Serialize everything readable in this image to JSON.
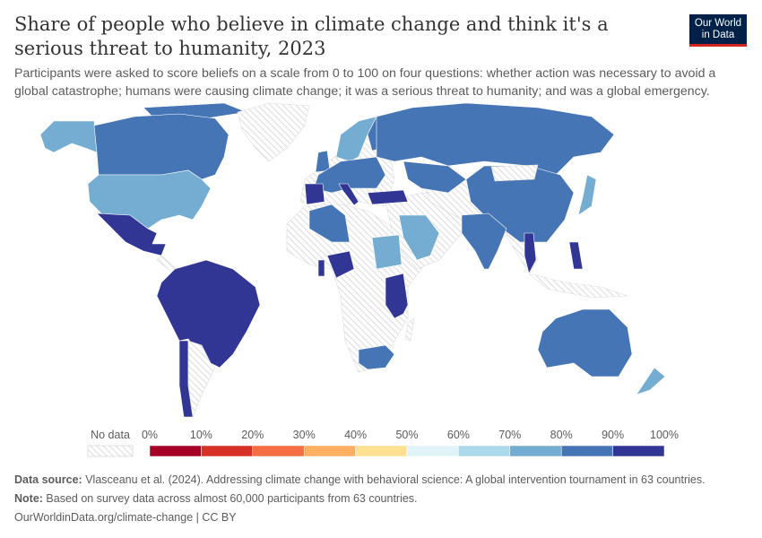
{
  "header": {
    "title": "Share of people who believe in climate change and think it's a serious threat to humanity, 2023",
    "subtitle": "Participants were asked to score beliefs on a scale from 0 to 100 on four questions: whether action was necessary to avoid a global catastrophe; humans were causing climate change; it was a serious threat to humanity; and was a global emergency.",
    "logo": "Our World in Data"
  },
  "legend": {
    "no_data_label": "No data",
    "ticks": [
      "0%",
      "10%",
      "20%",
      "30%",
      "40%",
      "50%",
      "60%",
      "70%",
      "80%",
      "90%",
      "100%"
    ],
    "colors": [
      "#a50026",
      "#d73027",
      "#f46d43",
      "#fdae61",
      "#fee090",
      "#e0f3f8",
      "#abd9e9",
      "#74add1",
      "#4575b4",
      "#313695"
    ]
  },
  "chart_data": {
    "type": "choropleth",
    "unit": "%",
    "bins": [
      0,
      10,
      20,
      30,
      40,
      50,
      60,
      70,
      80,
      90,
      100
    ],
    "countries": [
      {
        "name": "Canada",
        "bin": "80-90"
      },
      {
        "name": "United States",
        "bin": "70-80"
      },
      {
        "name": "Mexico",
        "bin": "90-100"
      },
      {
        "name": "Brazil / Andean South America",
        "bin": "90-100"
      },
      {
        "name": "Chile",
        "bin": "90-100"
      },
      {
        "name": "United Kingdom",
        "bin": "80-90"
      },
      {
        "name": "Norway / Sweden",
        "bin": "70-80"
      },
      {
        "name": "Finland",
        "bin": "80-90"
      },
      {
        "name": "Central Europe",
        "bin": "80-90"
      },
      {
        "name": "Spain",
        "bin": "90-100"
      },
      {
        "name": "Italy",
        "bin": "90-100"
      },
      {
        "name": "Turkey",
        "bin": "90-100"
      },
      {
        "name": "Russia",
        "bin": "80-90"
      },
      {
        "name": "Kazakhstan",
        "bin": "80-90"
      },
      {
        "name": "Saudi Arabia",
        "bin": "70-80"
      },
      {
        "name": "China",
        "bin": "80-90"
      },
      {
        "name": "India",
        "bin": "80-90"
      },
      {
        "name": "Thailand",
        "bin": "90-100"
      },
      {
        "name": "Philippines",
        "bin": "90-100"
      },
      {
        "name": "Japan",
        "bin": "70-80"
      },
      {
        "name": "Australia",
        "bin": "80-90"
      },
      {
        "name": "New Zealand",
        "bin": "70-80"
      },
      {
        "name": "Algeria",
        "bin": "80-90"
      },
      {
        "name": "Sudan",
        "bin": "70-80"
      },
      {
        "name": "Nigeria",
        "bin": "90-100"
      },
      {
        "name": "Ghana",
        "bin": "90-100"
      },
      {
        "name": "Kenya / Tanzania / Uganda",
        "bin": "90-100"
      },
      {
        "name": "South Africa",
        "bin": "80-90"
      }
    ]
  },
  "footer": {
    "source_label": "Data source:",
    "source_text": " Vlasceanu et al. (2024). Addressing climate change with behavioral science: A global intervention tournament in 63 countries.",
    "note_label": "Note:",
    "note_text": " Based on survey data across almost 60,000 participants from 63 countries.",
    "link": "OurWorldinData.org/climate-change | CC BY"
  }
}
